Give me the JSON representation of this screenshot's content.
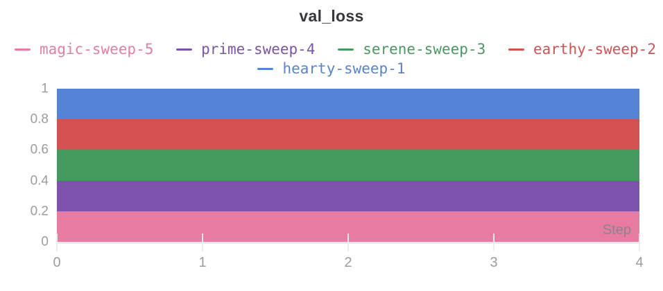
{
  "chart_data": {
    "type": "area",
    "stacked": true,
    "title": "val_loss",
    "xlabel": "Step",
    "ylabel": "",
    "x": [
      0,
      1,
      2,
      3,
      4
    ],
    "xlim": [
      0,
      4
    ],
    "ylim": [
      0,
      1
    ],
    "xtick_labels": [
      "0",
      "1",
      "2",
      "3",
      "4"
    ],
    "ytick_labels": [
      "0",
      "0.2",
      "0.4",
      "0.6",
      "0.8",
      "1"
    ],
    "grid": false,
    "legend_position": "top",
    "series": [
      {
        "name": "magic-sweep-5",
        "color": "#e87ba2",
        "values": [
          0.2,
          0.2,
          0.2,
          0.2,
          0.2
        ],
        "band": [
          0.0,
          0.2
        ]
      },
      {
        "name": "prime-sweep-4",
        "color": "#7d52ad",
        "values": [
          0.2,
          0.2,
          0.2,
          0.2,
          0.2
        ],
        "band": [
          0.2,
          0.4
        ]
      },
      {
        "name": "serene-sweep-3",
        "color": "#459a5d",
        "values": [
          0.2,
          0.2,
          0.2,
          0.2,
          0.2
        ],
        "band": [
          0.4,
          0.6
        ]
      },
      {
        "name": "earthy-sweep-2",
        "color": "#d55050",
        "values": [
          0.2,
          0.2,
          0.2,
          0.2,
          0.2
        ],
        "band": [
          0.6,
          0.8
        ]
      },
      {
        "name": "hearty-sweep-1",
        "color": "#5584d6",
        "values": [
          0.2,
          0.2,
          0.2,
          0.2,
          0.2
        ],
        "band": [
          0.8,
          1.0
        ]
      }
    ],
    "legend_rows": [
      [
        "magic-sweep-5",
        "prime-sweep-4",
        "serene-sweep-3",
        "earthy-sweep-2"
      ],
      [
        "hearty-sweep-1"
      ]
    ]
  },
  "theme": {
    "background": "#ffffff",
    "title_color": "#35373b",
    "tick_label_color": "#9b9ba1",
    "axis_line_color": "#ebebeb",
    "tick_mark_color": "#ededed",
    "step_label_color": "#8c8391"
  }
}
